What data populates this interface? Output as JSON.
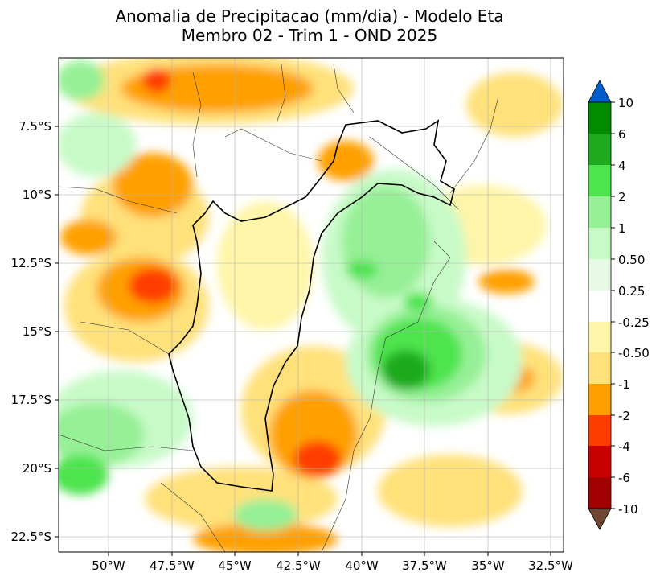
{
  "title": {
    "line1": "Anomalia de Precipitacao (mm/dia) - Modelo Eta",
    "line2": "Membro 02 - Trim 1 - OND 2025"
  },
  "lat_ticks": [
    "7.5°S",
    "10°S",
    "12.5°S",
    "15°S",
    "17.5°S",
    "20°S",
    "22.5°S"
  ],
  "lon_ticks": [
    "50°W",
    "47.5°W",
    "45°W",
    "42.5°W",
    "40°W",
    "37.5°W",
    "35°W",
    "32.5°W"
  ],
  "colorbar": {
    "labels": [
      "10",
      "6",
      "4",
      "2",
      "1",
      "0.50",
      "0.25",
      "-0.25",
      "-0.50",
      "-1",
      "-2",
      "-4",
      "-6",
      "-10"
    ],
    "colors": [
      "#005ccc",
      "#008c00",
      "#1eaa1e",
      "#4ee44e",
      "#96f096",
      "#c8fac8",
      "#e6fae6",
      "#ffffff",
      "#fff5a8",
      "#ffe17a",
      "#ffa000",
      "#ff3c00",
      "#c80000",
      "#a00000",
      "#6e4632"
    ]
  },
  "field_colors": {
    "wet_strong": "#1eaa1e",
    "wet": "#4ee44e",
    "wet_light": "#96f096",
    "wet_faint": "#c8fac8",
    "dry_faint": "#fff5a8",
    "dry_light": "#ffe17a",
    "dry": "#ffa000",
    "dry_strong": "#ff3c00"
  }
}
